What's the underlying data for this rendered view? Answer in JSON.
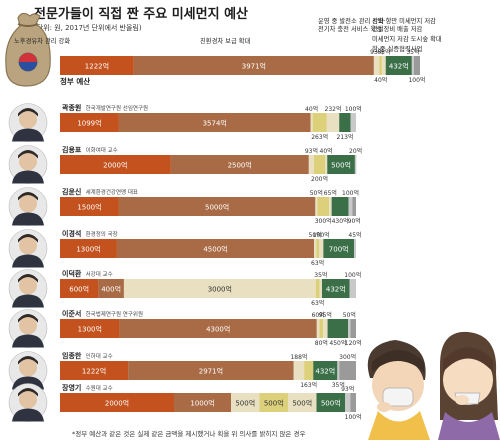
{
  "title": "전문가들이 직접 짠 주요 미세먼지 예산",
  "subtitle": "(단위: 원, 2017년 단위에서 반올림)",
  "footnote": "*정부 예산과 같은 것은 실제 같은 금액을 제시했거나 획을 위 의사를 밝히지 않은 경우",
  "colors": {
    "c1": "#c3521e",
    "c2": "#a86b46",
    "c3": "#e8e0c0",
    "c4": "#ddd07a",
    "c5": "#3a6f48",
    "c6": "#9a9a9a",
    "c7": "#c9c9c9",
    "c8": "#646464",
    "c9": "#3f3f3f"
  },
  "chart_data": {
    "type": "bar",
    "stacked": true,
    "orientation": "horizontal",
    "unit": "억",
    "categories_label": "예산 항목",
    "category_names": [
      "노후경유차 관리 강화",
      "친환경차 보급 확대",
      "운영 중 발전소 관리 강화",
      "전기차 충전 서비스 육성",
      "선박·항만 미세먼지 저감",
      "건설장비 배출 저감",
      "미세먼지 저감 도시숲 확대",
      "한·중 실증협력사업"
    ],
    "rows": [
      {
        "name": "정부 예산",
        "affil": "",
        "values": [
          1222,
          3971,
          93,
          40,
          63,
          432,
          35,
          100
        ],
        "labels": [
          "1222억",
          "3971억",
          "93억",
          "40억",
          "63억",
          "432억",
          "35억",
          "100억"
        ]
      },
      {
        "name": "곽종원",
        "affil": "한국개발연구원 선임연구원",
        "values": [
          1099,
          3574,
          40,
          263,
          232,
          213,
          100
        ],
        "labels": [
          "1099억",
          "3574억",
          "40억",
          "263억",
          "232억",
          "213억",
          "100억"
        ]
      },
      {
        "name": "김용표",
        "affil": "이화여대 교수",
        "values": [
          2000,
          2500,
          93,
          200,
          40,
          500,
          20
        ],
        "labels": [
          "2000억",
          "2500억",
          "93억",
          "200억",
          "40억",
          "500억",
          "20억"
        ]
      },
      {
        "name": "김윤신",
        "affil": "세계환경건강연맹 대표",
        "values": [
          1500,
          5000,
          50,
          300,
          65,
          430,
          100,
          90
        ],
        "labels": [
          "1500억",
          "5000억",
          "50억",
          "300억",
          "65억",
          "430억",
          "100억",
          "90억"
        ]
      },
      {
        "name": "이경석",
        "affil": "환경정의 국장",
        "values": [
          1300,
          4500,
          50,
          63,
          100,
          700,
          45
        ],
        "labels": [
          "1300억",
          "4500억",
          "50억",
          "63억",
          "100억",
          "700억",
          "45억"
        ]
      },
      {
        "name": "이덕환",
        "affil": "서강대 교수",
        "values": [
          600,
          400,
          3000,
          63,
          35,
          432,
          100
        ],
        "labels": [
          "600억",
          "400억",
          "3000억",
          "63억",
          "35억",
          "432억",
          "100억"
        ]
      },
      {
        "name": "이준서",
        "affil": "한국법제연구원 연구위원",
        "values": [
          1300,
          4300,
          60,
          80,
          95,
          450,
          50,
          120
        ],
        "labels": [
          "1300억",
          "4300억",
          "60억",
          "80억",
          "95억",
          "450억",
          "50억",
          "120억"
        ]
      },
      {
        "name": "임종한",
        "affil": "인하대 교수",
        "values": [
          1222,
          2971,
          188,
          163,
          432,
          35,
          300
        ],
        "labels": [
          "1222억",
          "2971억",
          "188억",
          "163억",
          "432억",
          "35억",
          "300억"
        ]
      },
      {
        "name": "장영기",
        "affil": "수원대 교수",
        "values": [
          2000,
          1000,
          500,
          500,
          500,
          500,
          93,
          100
        ],
        "labels": [
          "2000억",
          "1000억",
          "500억",
          "500억",
          "500억",
          "500억",
          "93억",
          "100억"
        ]
      }
    ]
  }
}
